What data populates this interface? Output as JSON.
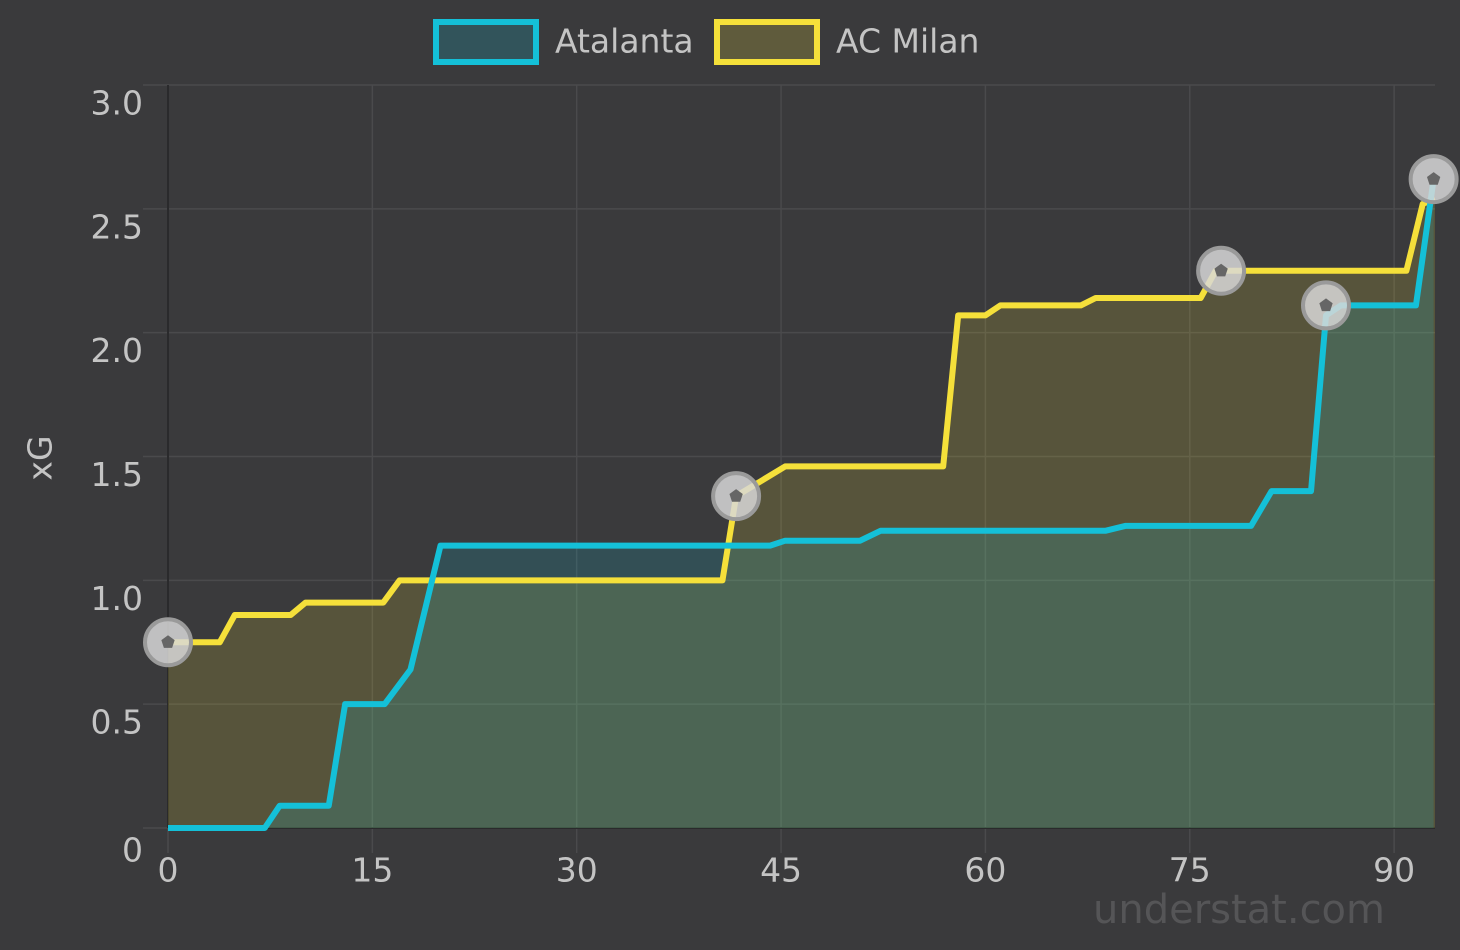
{
  "chart_data": {
    "type": "line",
    "ylabel": "xG",
    "watermark": "understat.com",
    "xlim": [
      0,
      93
    ],
    "ylim": [
      0,
      3
    ],
    "xticks": [
      0,
      15,
      30,
      45,
      60,
      75,
      90
    ],
    "yticks": [
      0,
      0.5,
      {
        "value": 1,
        "label": "1.0"
      },
      1.5,
      {
        "value": 2,
        "label": "2.0"
      },
      2.5,
      {
        "value": 3,
        "label": "3.0"
      }
    ],
    "grid": true,
    "legend": "top",
    "series": [
      {
        "name": "Atalanta",
        "color": "#14c0d8",
        "x": [
          0,
          7.1,
          8.2,
          11.8,
          13.0,
          15.9,
          17.8,
          20.0,
          44.2,
          45.3,
          50.8,
          52.3,
          68.8,
          70.3,
          79.5,
          81.0,
          83.9,
          85.0,
          86.1,
          91.6,
          92.9
        ],
        "values": [
          0,
          0,
          0.09,
          0.09,
          0.5,
          0.5,
          0.64,
          1.14,
          1.14,
          1.16,
          1.16,
          1.2,
          1.2,
          1.22,
          1.22,
          1.36,
          1.36,
          2.07,
          2.11,
          2.11,
          2.62
        ],
        "goals": [
          {
            "x": 85.0,
            "y": 2.11
          },
          {
            "x": 92.9,
            "y": 2.62
          }
        ]
      },
      {
        "name": "AC Milan",
        "color": "#f5e03a",
        "x": [
          0,
          3.8,
          4.9,
          9.0,
          10.1,
          15.8,
          17.0,
          40.7,
          41.7,
          45.3,
          56.9,
          58.0,
          60.0,
          61.1,
          67.0,
          68.1,
          75.8,
          76.9,
          90.9,
          92.1,
          93
        ],
        "values": [
          0.75,
          0.75,
          0.86,
          0.86,
          0.91,
          0.91,
          1.0,
          1.0,
          1.34,
          1.46,
          1.46,
          2.07,
          2.07,
          2.11,
          2.11,
          2.14,
          2.14,
          2.25,
          2.25,
          2.52,
          2.54
        ],
        "goals": [
          {
            "x": 0,
            "y": 0.75
          },
          {
            "x": 41.7,
            "y": 1.34
          },
          {
            "x": 77.3,
            "y": 2.25
          }
        ]
      }
    ]
  }
}
